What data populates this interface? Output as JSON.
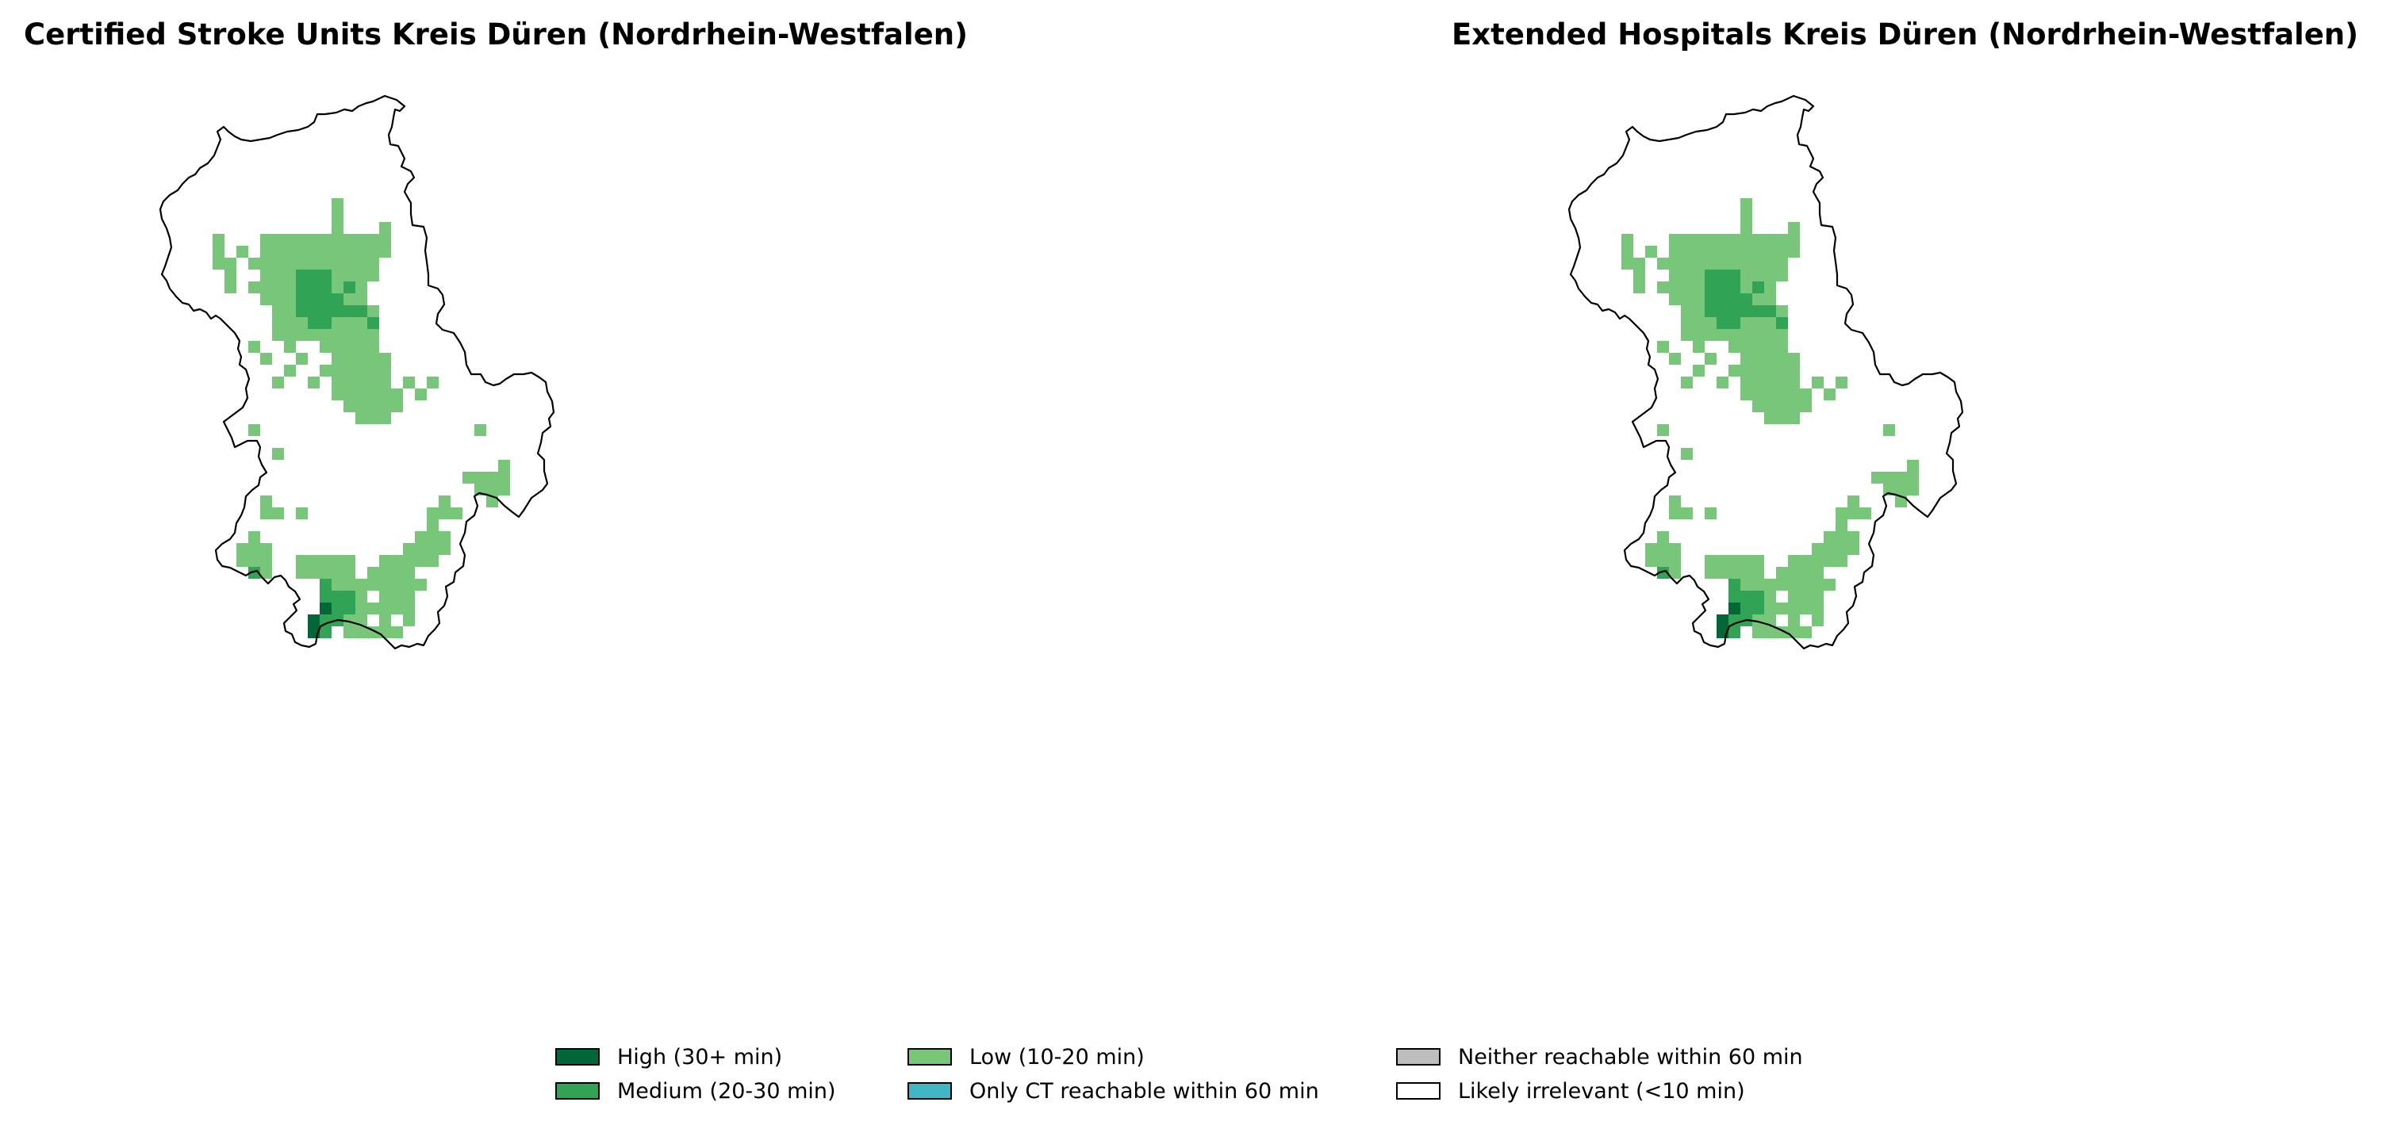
{
  "maps": [
    {
      "title": "Certified Stroke Units Kreis Düren (Nordrhein-Westfalen)"
    },
    {
      "title": "Extended Hospitals Kreis Düren (Nordrhein-Westfalen)"
    }
  ],
  "legend": [
    {
      "label": "High (30+ min)",
      "color": "#006837"
    },
    {
      "label": "Medium (20-30 min)",
      "color": "#31a354"
    },
    {
      "label": "Low (10-20 min)",
      "color": "#78c679"
    },
    {
      "label": "Only CT reachable within 60 min",
      "color": "#41b6c4"
    },
    {
      "label": "Neither reachable within 60 min",
      "color": "#bdbdbd"
    },
    {
      "label": "Likely irrelevant (<10 min)",
      "color": "#ffffff"
    }
  ],
  "boundary_color": "#000000"
}
